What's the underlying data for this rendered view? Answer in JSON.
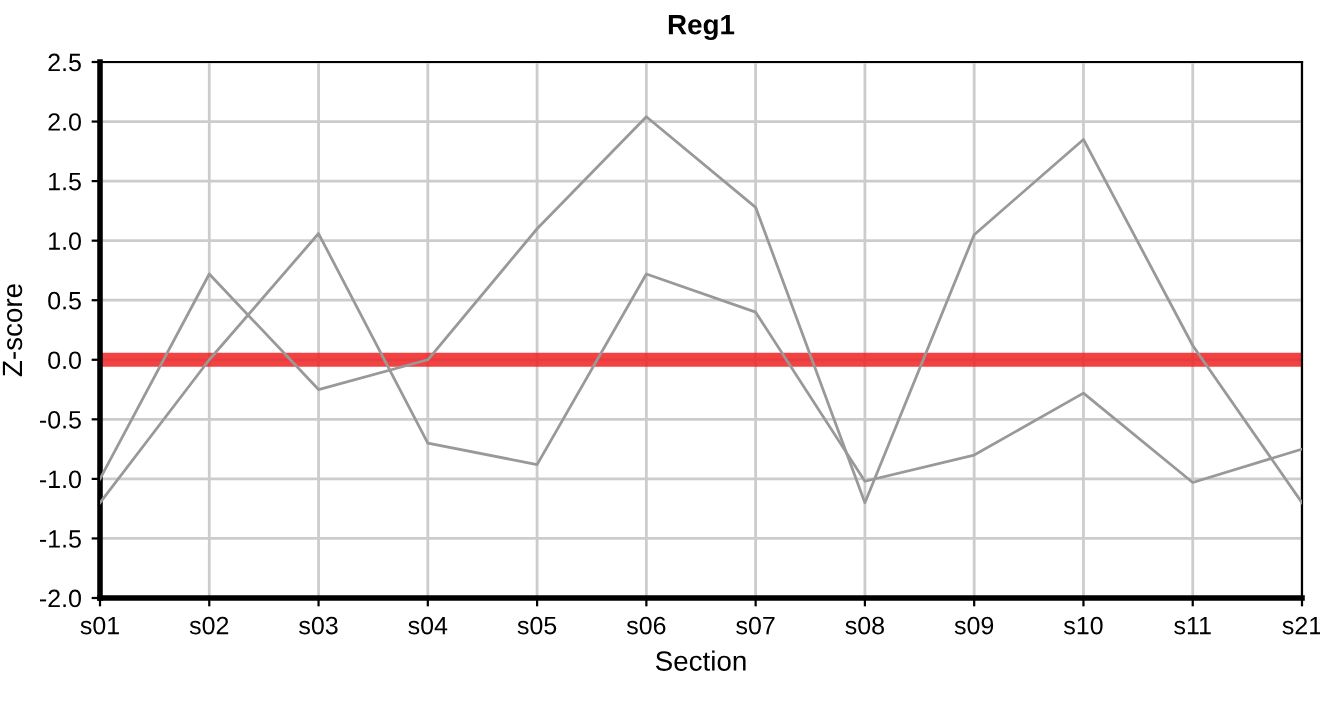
{
  "chart_data": {
    "type": "line",
    "title": "Reg1",
    "xlabel": "Section",
    "ylabel": "Z-score",
    "categories": [
      "s01",
      "s02",
      "s03",
      "s04",
      "s05",
      "s06",
      "s07",
      "s08",
      "s09",
      "s10",
      "s11",
      "s21"
    ],
    "series": [
      {
        "color": "#999999",
        "values": [
          -1.0,
          0.72,
          -0.25,
          0.0,
          1.1,
          2.04,
          1.28,
          -1.2,
          1.05,
          1.85,
          0.12,
          -1.2
        ]
      },
      {
        "color": "#999999",
        "values": [
          -1.2,
          0.0,
          1.06,
          -0.7,
          -0.88,
          0.72,
          0.4,
          -1.02,
          -0.8,
          -0.28,
          -1.03,
          -0.75
        ]
      }
    ],
    "ylim": [
      -2.0,
      2.5
    ],
    "yticks": [
      {
        "value": -2.0,
        "label": "-2.0"
      },
      {
        "value": -1.5,
        "label": "-1.5"
      },
      {
        "value": -1.0,
        "label": "-1.0"
      },
      {
        "value": -0.5,
        "label": "-0.5"
      },
      {
        "value": 0.0,
        "label": "0.0"
      },
      {
        "value": 0.5,
        "label": "0.5"
      },
      {
        "value": 1.0,
        "label": "1.0"
      },
      {
        "value": 1.5,
        "label": "1.5"
      },
      {
        "value": 2.0,
        "label": "2.0"
      },
      {
        "value": 2.5,
        "label": "2.5"
      }
    ],
    "ref_lines": [
      {
        "axis": "y",
        "value": 0,
        "color": "#ee2222",
        "line_style": "solid"
      }
    ],
    "grid": true,
    "legend": false,
    "marker": "none",
    "line_style": "solid"
  }
}
